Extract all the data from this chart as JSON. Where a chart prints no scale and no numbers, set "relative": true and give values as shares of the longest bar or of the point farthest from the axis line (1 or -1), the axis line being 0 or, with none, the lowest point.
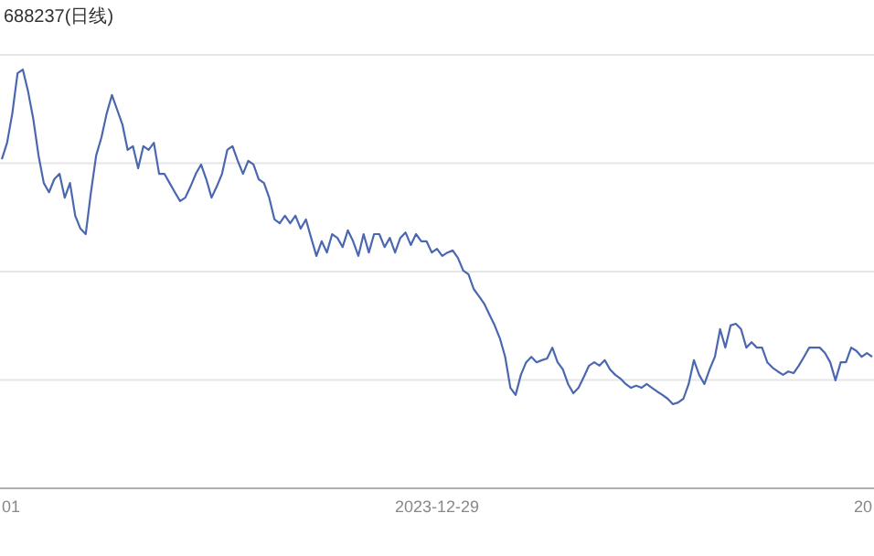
{
  "chart_data": {
    "type": "line",
    "title": "688237(日线)",
    "annotations": [
      "01",
      "2023-12-29",
      "20"
    ],
    "relative": true,
    "grid": "y",
    "categories": [
      null,
      null,
      null,
      null,
      null,
      null,
      null,
      null,
      null,
      null,
      null,
      null,
      null,
      null,
      null,
      null,
      null,
      null,
      null,
      null,
      null,
      null,
      null,
      null,
      null,
      null,
      null,
      null,
      null,
      null,
      null,
      null,
      null,
      null,
      null,
      null,
      null,
      null,
      null,
      null,
      null,
      null,
      null,
      null,
      null,
      null,
      null,
      null,
      null,
      null,
      null,
      null,
      null,
      null,
      null,
      null,
      null,
      null,
      null,
      null,
      null,
      null,
      null,
      null,
      null,
      null,
      null,
      null,
      null,
      null,
      null,
      null,
      null,
      null,
      null,
      null,
      null,
      null,
      null,
      null,
      null,
      null,
      null,
      null,
      null,
      null,
      null,
      null,
      null,
      null,
      null,
      null,
      null,
      null,
      null,
      null,
      null,
      null,
      null,
      null,
      null,
      null,
      null,
      null,
      null,
      null,
      null,
      null,
      null,
      null,
      null,
      null,
      null,
      null,
      null,
      null,
      null,
      null,
      null,
      null,
      null,
      null,
      null,
      null,
      null,
      null,
      null,
      null,
      null,
      null,
      null,
      null,
      null,
      null,
      null,
      null,
      null,
      null,
      null,
      null,
      null,
      null,
      null,
      null,
      null,
      null,
      null,
      null,
      null,
      null,
      null,
      null,
      null,
      null,
      null,
      null,
      null,
      null,
      null,
      null,
      null,
      null,
      null,
      null,
      null,
      null,
      null
    ],
    "series": [
      {
        "color": "#4a67b0",
        "values": [
          0.786,
          0.825,
          0.895,
          0.991,
          1.0,
          0.948,
          0.882,
          0.795,
          0.729,
          0.707,
          0.738,
          0.751,
          0.694,
          0.729,
          0.651,
          0.62,
          0.607,
          0.707,
          0.795,
          0.838,
          0.895,
          0.939,
          0.904,
          0.869,
          0.808,
          0.817,
          0.764,
          0.817,
          0.808,
          0.825,
          0.751,
          0.751,
          0.729,
          0.707,
          0.686,
          0.694,
          0.721,
          0.751,
          0.773,
          0.738,
          0.694,
          0.721,
          0.751,
          0.808,
          0.817,
          0.782,
          0.751,
          0.782,
          0.773,
          0.738,
          0.729,
          0.694,
          0.642,
          0.633,
          0.651,
          0.633,
          0.651,
          0.62,
          0.642,
          0.598,
          0.555,
          0.59,
          0.563,
          0.607,
          0.598,
          0.576,
          0.616,
          0.59,
          0.555,
          0.607,
          0.563,
          0.607,
          0.607,
          0.576,
          0.598,
          0.563,
          0.598,
          0.611,
          0.581,
          0.607,
          0.59,
          0.59,
          0.563,
          0.572,
          0.555,
          0.563,
          0.568,
          0.55,
          0.52,
          0.511,
          0.476,
          0.459,
          0.441,
          0.415,
          0.389,
          0.358,
          0.314,
          0.24,
          0.223,
          0.271,
          0.301,
          0.314,
          0.301,
          0.306,
          0.31,
          0.336,
          0.301,
          0.284,
          0.249,
          0.227,
          0.24,
          0.266,
          0.293,
          0.301,
          0.293,
          0.306,
          0.284,
          0.271,
          0.262,
          0.249,
          0.24,
          0.245,
          0.24,
          0.249,
          0.24,
          0.231,
          0.223,
          0.214,
          0.201,
          0.205,
          0.214,
          0.249,
          0.306,
          0.271,
          0.249,
          0.284,
          0.314,
          0.38,
          0.336,
          0.389,
          0.393,
          0.38,
          0.336,
          0.349,
          0.336,
          0.336,
          0.301,
          0.288,
          0.279,
          0.271,
          0.279,
          0.275,
          0.293,
          0.314,
          0.336,
          0.336,
          0.336,
          0.323,
          0.301,
          0.258,
          0.301,
          0.301,
          0.336,
          0.328,
          0.314,
          0.323,
          0.314
        ]
      }
    ]
  }
}
